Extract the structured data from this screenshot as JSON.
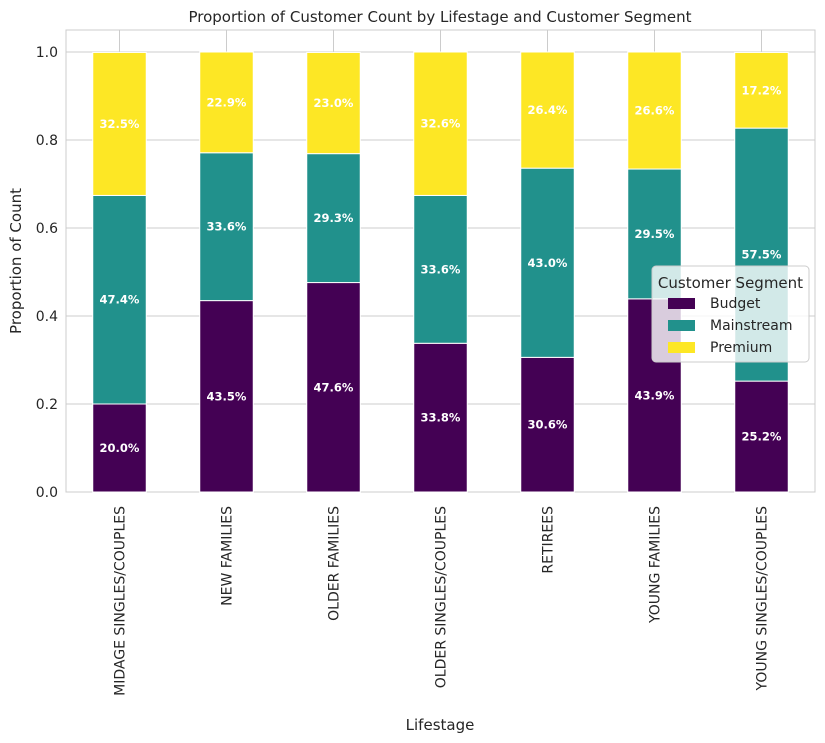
{
  "chart_data": {
    "type": "bar",
    "stacked": true,
    "title": "Proportion of Customer Count by Lifestage and Customer Segment",
    "xlabel": "Lifestage",
    "ylabel": "Proportion of Count",
    "ylim": [
      0,
      1.05
    ],
    "yticks": [
      "0.0",
      "0.2",
      "0.4",
      "0.6",
      "0.8",
      "1.0"
    ],
    "grid": true,
    "categories": [
      "MIDAGE SINGLES/COUPLES",
      "NEW FAMILIES",
      "OLDER FAMILIES",
      "OLDER SINGLES/COUPLES",
      "RETIREES",
      "YOUNG FAMILIES",
      "YOUNG SINGLES/COUPLES"
    ],
    "series": [
      {
        "name": "Budget",
        "color": "#440154",
        "values": [
          0.2,
          0.435,
          0.476,
          0.338,
          0.306,
          0.439,
          0.252
        ],
        "labels": [
          "20.0%",
          "43.5%",
          "47.6%",
          "33.8%",
          "30.6%",
          "43.9%",
          "25.2%"
        ]
      },
      {
        "name": "Mainstream",
        "color": "#21918c",
        "values": [
          0.474,
          0.336,
          0.293,
          0.336,
          0.43,
          0.295,
          0.575
        ],
        "labels": [
          "47.4%",
          "33.6%",
          "29.3%",
          "33.6%",
          "43.0%",
          "29.5%",
          "57.5%"
        ]
      },
      {
        "name": "Premium",
        "color": "#fde725",
        "values": [
          0.325,
          0.229,
          0.23,
          0.326,
          0.264,
          0.266,
          0.172
        ],
        "labels": [
          "32.5%",
          "22.9%",
          "23.0%",
          "32.6%",
          "26.4%",
          "26.6%",
          "17.2%"
        ]
      }
    ],
    "legend": {
      "title": "Customer Segment",
      "placement": "center-right"
    }
  }
}
